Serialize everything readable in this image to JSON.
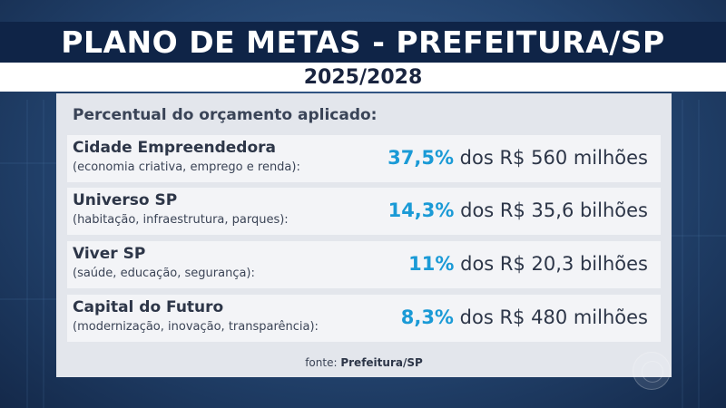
{
  "header": {
    "title": "PLANO DE METAS - PREFEITURA/SP",
    "subtitle": "2025/2028"
  },
  "panel": {
    "heading": "Percentual do orçamento aplicado:",
    "rows": [
      {
        "name": "Cidade Empreendedora",
        "description": "(economia criativa, emprego e renda):",
        "percent": "37,5%",
        "amount": "dos R$ 560 milhões"
      },
      {
        "name": "Universo SP",
        "description": "(habitação, infraestrutura, parques):",
        "percent": "14,3%",
        "amount": "dos R$ 35,6 bilhões"
      },
      {
        "name": "Viver SP",
        "description": "(saúde, educação, segurança):",
        "percent": "11%",
        "amount": "dos R$ 20,3 bilhões"
      },
      {
        "name": "Capital do Futuro",
        "description": "(modernização, inovação, transparência):",
        "percent": "8,3%",
        "amount": "dos R$ 480 milhões"
      }
    ],
    "source_label": "fonte:",
    "source_value": "Prefeitura/SP"
  },
  "colors": {
    "accent": "#1a9ad6",
    "title_bar": "#0f2447",
    "background": "#22446e"
  },
  "icons": {
    "broadcaster_logo": "globo-logo-icon"
  }
}
